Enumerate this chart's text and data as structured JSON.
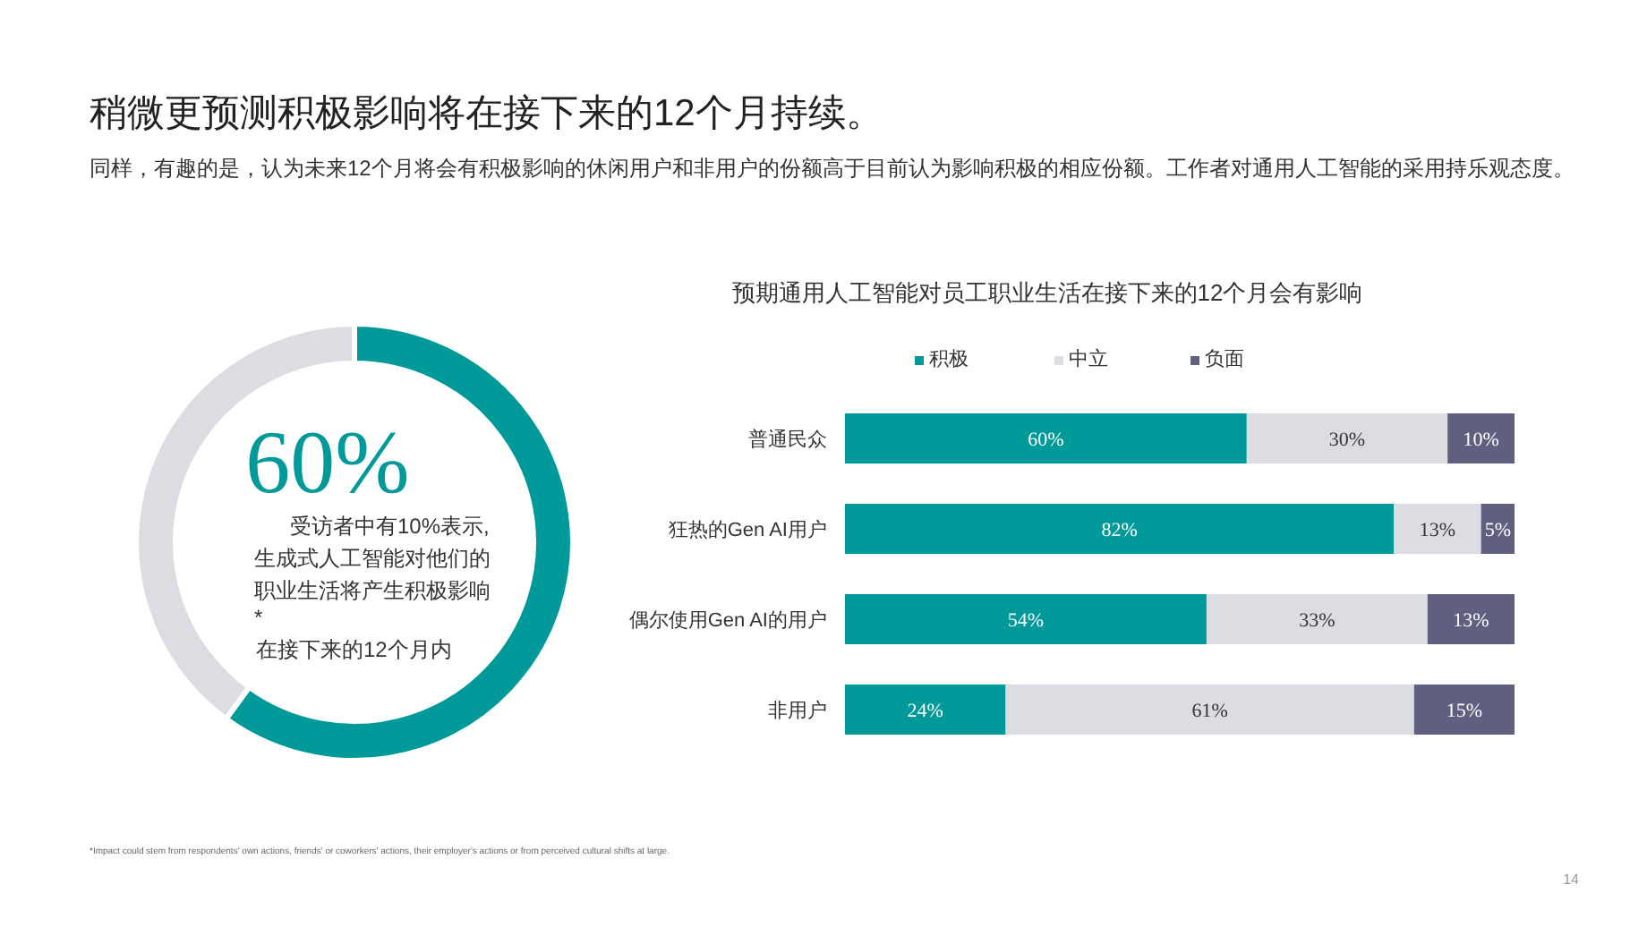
{
  "chart_data": [
    {
      "type": "donut",
      "title": "稍微更预测积极影响将在接下来的12个月持续。",
      "subtitle": "同样，有趣的是，认为未来12个月将会有积极影响的休闲用户和非用户的份额高于目前认为影响积极的相应份额。工作者对通用人工智能的采用持乐观态度。",
      "categories": [
        null,
        null
      ],
      "values": [
        60,
        40
      ],
      "colors": [
        "#009999",
        "#dcdde3"
      ],
      "annotations": [
        "60%",
        "受访者中有10%表示,",
        "生成式人工智能对他们的",
        "职业生活将产生积极影响",
        "*",
        "在接下来的12个月内",
        "*Impact could stem from respondents' own actions, friends' or coworkers' actions, their employer's actions or from perceived cultural shifts at large.",
        "14"
      ]
    },
    {
      "type": "bar",
      "title": "预期通用人工智能对员工职业生活在接下来的12个月会有影响",
      "orientation": "horizontal",
      "stacked": true,
      "legend": "top",
      "categories": [
        "普通民众",
        "狂热的Gen AI用户",
        "偶尔使用Gen AI的用户",
        "非用户"
      ],
      "series": [
        {
          "name": "积极",
          "color": "#009999",
          "values": [
            60,
            82,
            54,
            24
          ],
          "value_labels": [
            "60%",
            "82%",
            "54%",
            "24%"
          ]
        },
        {
          "name": "中立",
          "color": "#dcdde3",
          "values": [
            30,
            13,
            33,
            61
          ],
          "value_labels": [
            "30%",
            "13%",
            "33%",
            "61%"
          ]
        },
        {
          "name": "负面",
          "color": "#5f5f7f",
          "values": [
            10,
            5,
            13,
            15
          ],
          "value_labels": [
            "10%",
            "5%",
            "13%",
            "15%"
          ]
        }
      ]
    }
  ]
}
